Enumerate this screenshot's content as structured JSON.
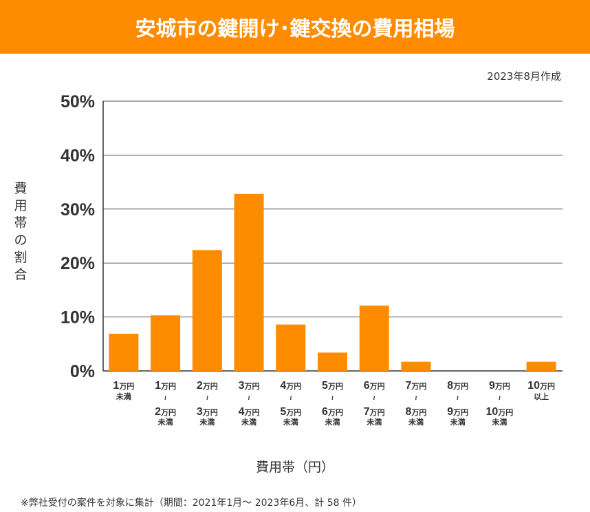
{
  "header": {
    "title": "安城市の鍵開け･鍵交換の費用相場"
  },
  "date_note": "2023年8月作成",
  "footnote": "※弊社受付の案件を対象に集計（期間：2021年1月～ 2023年6月、計 58 件）",
  "colors": {
    "accent": "#ff8c00",
    "bar": "#ff8c00",
    "grid": "#555555"
  },
  "chart_data": {
    "type": "bar",
    "title": "",
    "ylabel": "費用帯の割合",
    "xlabel": "費用帯（円）",
    "ylim": [
      0,
      50
    ],
    "yticks": [
      "0%",
      "10%",
      "20%",
      "30%",
      "40%",
      "50%"
    ],
    "grid": true,
    "range_sep": "~",
    "categories": [
      {
        "from": "1",
        "unit": "万円",
        "note": "未満"
      },
      {
        "from": "1",
        "to": "2",
        "unit": "万円",
        "note": "未満"
      },
      {
        "from": "2",
        "to": "3",
        "unit": "万円",
        "note": "未満"
      },
      {
        "from": "3",
        "to": "4",
        "unit": "万円",
        "note": "未満"
      },
      {
        "from": "4",
        "to": "5",
        "unit": "万円",
        "note": "未満"
      },
      {
        "from": "5",
        "to": "6",
        "unit": "万円",
        "note": "未満"
      },
      {
        "from": "6",
        "to": "7",
        "unit": "万円",
        "note": "未満"
      },
      {
        "from": "7",
        "to": "8",
        "unit": "万円",
        "note": "未満"
      },
      {
        "from": "8",
        "to": "9",
        "unit": "万円",
        "note": "未満"
      },
      {
        "from": "9",
        "to": "10",
        "unit": "万円",
        "note": "未満"
      },
      {
        "from": "10",
        "unit": "万円",
        "note": "以上"
      }
    ],
    "values": [
      6.9,
      10.3,
      22.4,
      32.8,
      8.6,
      3.4,
      12.1,
      1.7,
      0,
      0,
      1.7
    ]
  }
}
